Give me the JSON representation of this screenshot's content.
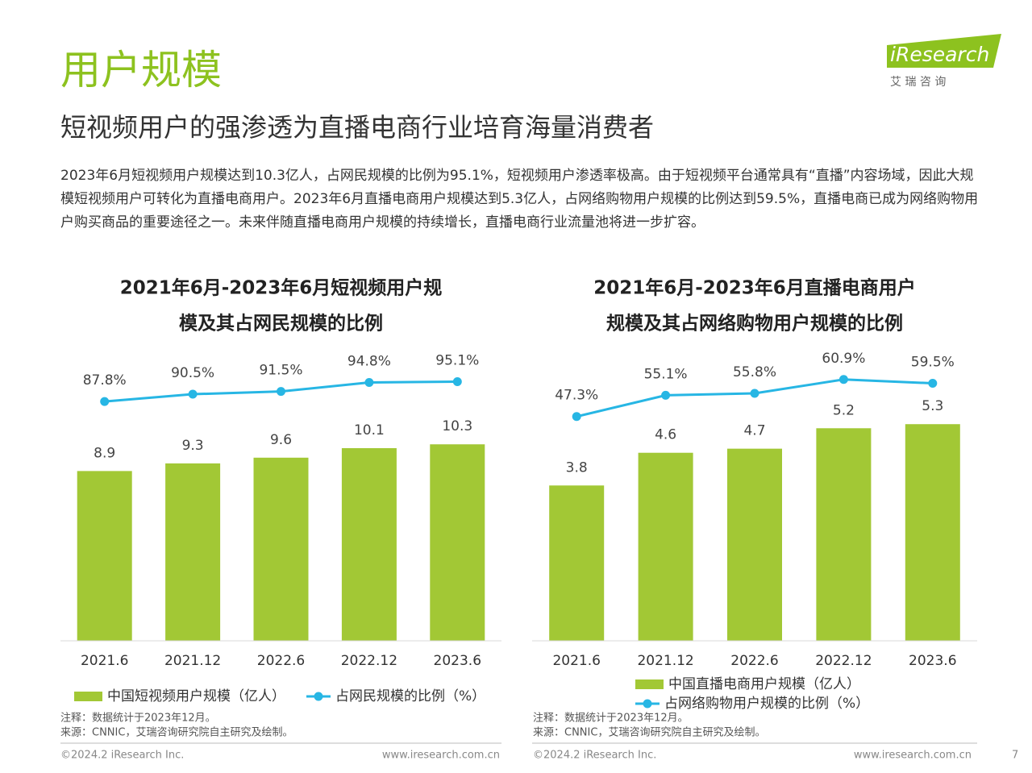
{
  "header": {
    "title": "用户规模",
    "subtitle": "短视频用户的强渗透为直播电商行业培育海量消费者",
    "body": "2023年6月短视频用户规模达到10.3亿人，占网民规模的比例为95.1%，短视频用户渗透率极高。由于短视频平台通常具有“直播”内容场域，因此大规模短视频用户可转化为直播电商用户。2023年6月直播电商用户规模达到5.3亿人，占网络购物用户规模的比例达到59.5%，直播电商已成为网络购物用户购买商品的重要途径之一。未来伴随直播电商用户规模的持续增长，直播电商行业流量池将进一步扩容。"
  },
  "logo": {
    "brand": "iResearch",
    "tagline": "艾 瑞 咨 询"
  },
  "chart_data": [
    {
      "type": "bar-line",
      "title": [
        "2021年6月-2023年6月短视频用户规",
        "模及其占网民规模的比例"
      ],
      "categories": [
        "2021.6",
        "2021.12",
        "2022.6",
        "2022.12",
        "2023.6"
      ],
      "series": [
        {
          "name": "中国短视频用户规模（亿人）",
          "color": "#a2c835",
          "values": [
            8.9,
            9.3,
            9.6,
            10.1,
            10.3
          ]
        },
        {
          "name": "占网民规模的比例（%）",
          "color": "#27b6e4",
          "axis": "y2",
          "values": [
            87.8,
            90.5,
            91.5,
            94.8,
            95.1
          ],
          "value_labels": [
            "87.8%",
            "90.5%",
            "91.5%",
            "94.8%",
            "95.1%"
          ]
        }
      ],
      "ylim": [
        0,
        15
      ],
      "y2lim": [
        0,
        105
      ]
    },
    {
      "type": "bar-line",
      "title": [
        "2021年6月-2023年6月直播电商用户",
        "规模及其占网络购物用户规模的比例"
      ],
      "categories": [
        "2021.6",
        "2021.12",
        "2022.6",
        "2022.12",
        "2023.6"
      ],
      "series": [
        {
          "name": "中国直播电商用户规模（亿人）",
          "color": "#a2c835",
          "values": [
            3.8,
            4.6,
            4.7,
            5.2,
            5.3
          ]
        },
        {
          "name": "占网络购物用户规模的比例（%）",
          "color": "#27b6e4",
          "axis": "y2",
          "values": [
            47.3,
            55.1,
            55.8,
            60.9,
            59.5
          ],
          "value_labels": [
            "47.3%",
            "55.1%",
            "55.8%",
            "60.9%",
            "59.5%"
          ]
        }
      ],
      "ylim": [
        0,
        7
      ],
      "y2lim": [
        -35,
        70
      ]
    }
  ],
  "notes": [
    {
      "note": "注释：数据统计于2023年12月。",
      "source": "来源：CNNIC，艾瑞咨询研究院自主研究及绘制。"
    },
    {
      "note": "注释：数据统计于2023年12月。",
      "source": "来源：CNNIC，艾瑞咨询研究院自主研究及绘制。"
    }
  ],
  "footer": [
    {
      "copyright": "©2024.2 iResearch Inc.",
      "url": "www.iresearch.com.cn"
    },
    {
      "copyright": "©2024.2 iResearch Inc.",
      "url": "www.iresearch.com.cn"
    }
  ],
  "page_number": 7
}
